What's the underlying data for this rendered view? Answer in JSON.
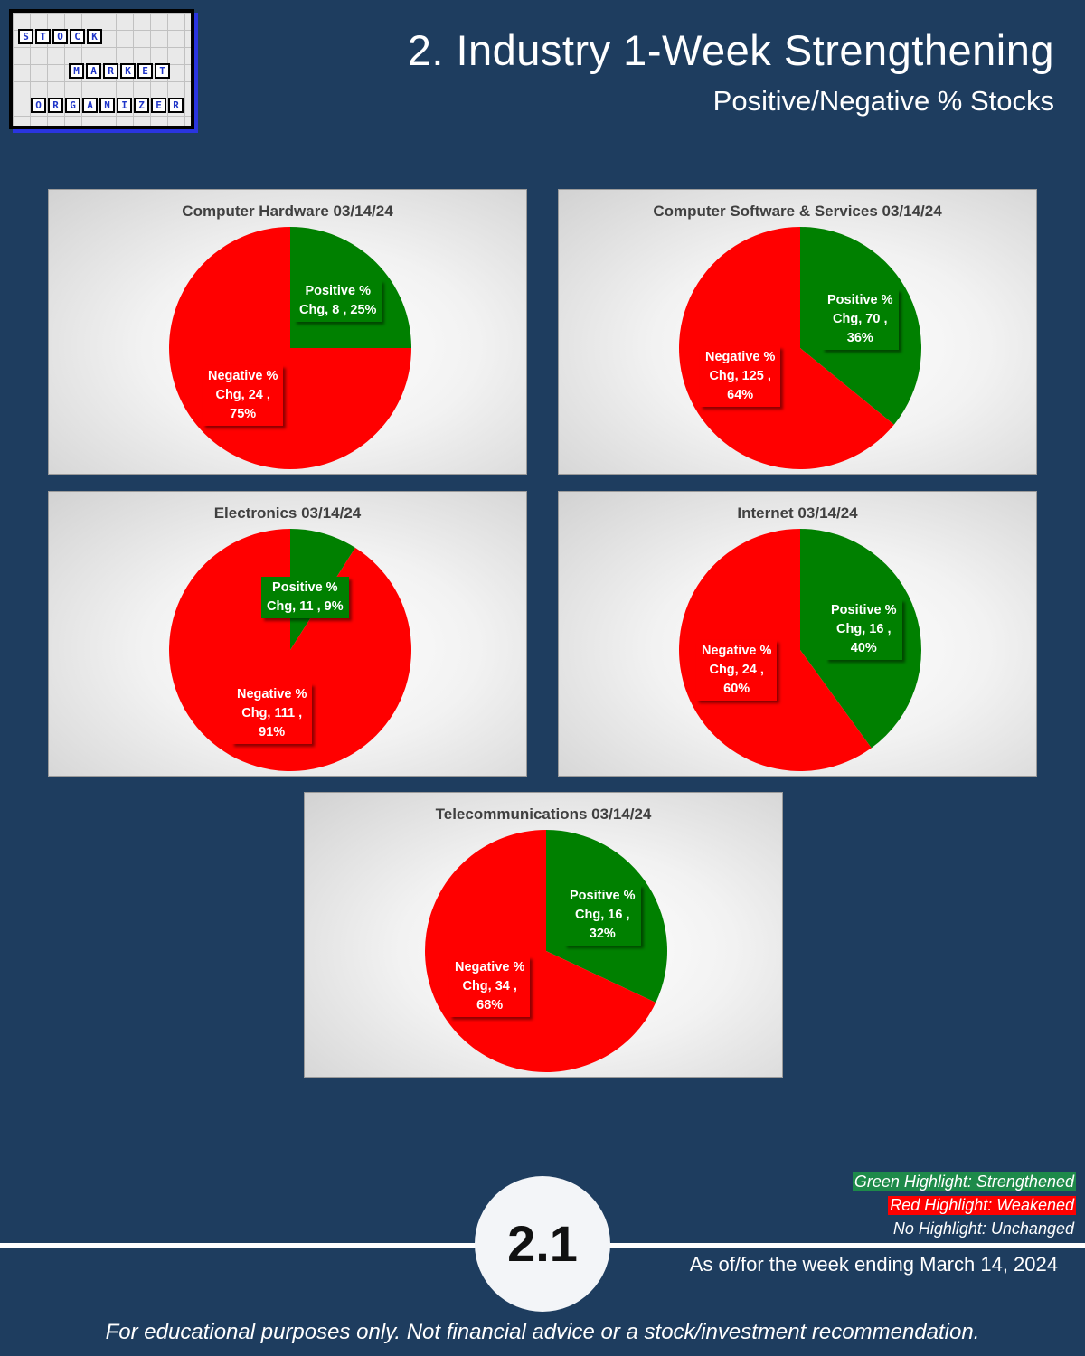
{
  "logo": {
    "rows": [
      {
        "letters": [
          "S",
          "T",
          "O",
          "C",
          "K"
        ],
        "left": 6,
        "top": 18
      },
      {
        "letters": [
          "M",
          "A",
          "R",
          "K",
          "E",
          "T"
        ],
        "left": 62,
        "top": 56
      },
      {
        "letters": [
          "O",
          "R",
          "G",
          "A",
          "N",
          "I",
          "Z",
          "E",
          "R"
        ],
        "left": 20,
        "top": 94
      }
    ]
  },
  "header": {
    "title": "2. Industry 1-Week Strengthening",
    "subtitle": "Positive/Negative % Stocks"
  },
  "colors": {
    "positive": "#008000",
    "negative": "#ff0000",
    "background": "#1e3d5f",
    "legend_green": "#1e8a4a",
    "legend_red": "#ff0000"
  },
  "chart_data": [
    {
      "type": "pie",
      "title": "Computer Hardware 03/14/24",
      "slices": [
        {
          "name": "Positive % Chg",
          "value": 8,
          "percent": "25%",
          "label_lines": [
            "Positive %",
            "Chg,  8 , 25%"
          ]
        },
        {
          "name": "Negative % Chg",
          "value": 24,
          "percent": "75%",
          "label_lines": [
            "Negative %",
            "Chg,  24 ,",
            "75%"
          ]
        }
      ]
    },
    {
      "type": "pie",
      "title": "Computer Software & Services 03/14/24",
      "slices": [
        {
          "name": "Positive % Chg",
          "value": 70,
          "percent": "36%",
          "label_lines": [
            "Positive %",
            "Chg,  70 ,",
            "36%"
          ]
        },
        {
          "name": "Negative % Chg",
          "value": 125,
          "percent": "64%",
          "label_lines": [
            "Negative %",
            "Chg,  125 ,",
            "64%"
          ]
        }
      ]
    },
    {
      "type": "pie",
      "title": "Electronics 03/14/24",
      "slices": [
        {
          "name": "Positive % Chg",
          "value": 11,
          "percent": "9%",
          "label_lines": [
            "Positive %",
            "Chg,  11 , 9%"
          ]
        },
        {
          "name": "Negative % Chg",
          "value": 111,
          "percent": "91%",
          "label_lines": [
            "Negative %",
            "Chg,  111 ,",
            "91%"
          ]
        }
      ]
    },
    {
      "type": "pie",
      "title": "Internet 03/14/24",
      "slices": [
        {
          "name": "Positive % Chg",
          "value": 16,
          "percent": "40%",
          "label_lines": [
            "Positive %",
            "Chg,  16 ,",
            "40%"
          ]
        },
        {
          "name": "Negative % Chg",
          "value": 24,
          "percent": "60%",
          "label_lines": [
            "Negative %",
            "Chg,  24 ,",
            "60%"
          ]
        }
      ]
    },
    {
      "type": "pie",
      "title": "Telecommunications 03/14/24",
      "slices": [
        {
          "name": "Positive % Chg",
          "value": 16,
          "percent": "32%",
          "label_lines": [
            "Positive %",
            "Chg,  16 ,",
            "32%"
          ]
        },
        {
          "name": "Negative % Chg",
          "value": 34,
          "percent": "68%",
          "label_lines": [
            "Negative %",
            "Chg,  34 ,",
            "68%"
          ]
        }
      ]
    }
  ],
  "legend": {
    "green": "Green Highlight: Strengthened",
    "red": "Red Highlight: Weakened",
    "none": "No Highlight: Unchanged"
  },
  "footer": {
    "badge": "2.1",
    "as_of": "As of/for the week ending March 14, 2024",
    "disclaimer": "For educational purposes only. Not financial advice or a stock/investment recommendation."
  }
}
